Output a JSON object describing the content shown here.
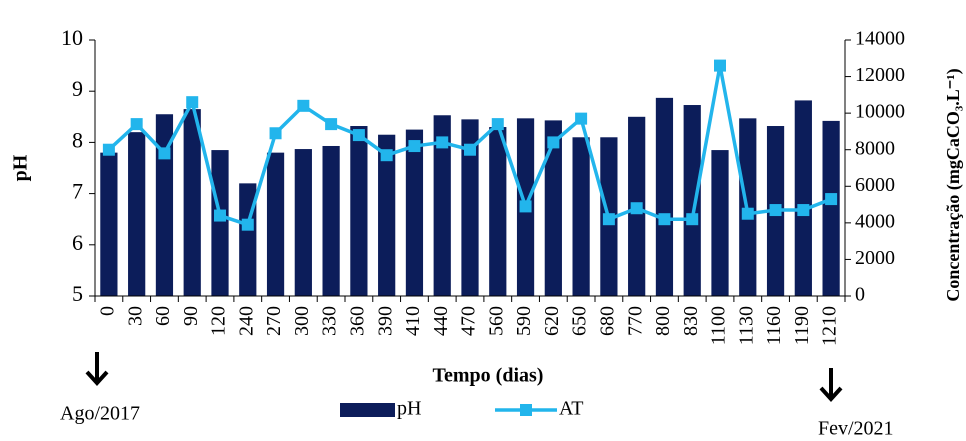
{
  "chart_data": {
    "type": "bar",
    "x_label": "Tempo (dias)",
    "y_label": "pH",
    "y2_label": "Concentração (mgCaCO₃.L⁻¹)",
    "annotations": [
      "Ago/2017",
      "Fev/2021"
    ],
    "categories": [
      "0",
      "30",
      "60",
      "90",
      "120",
      "240",
      "270",
      "300",
      "330",
      "360",
      "390",
      "410",
      "440",
      "470",
      "560",
      "590",
      "620",
      "650",
      "680",
      "770",
      "800",
      "830",
      "1100",
      "1130",
      "1160",
      "1190",
      "1210"
    ],
    "series": [
      {
        "name": "pH",
        "type": "bar",
        "color": "#0c1d5a",
        "values": [
          7.8,
          8.2,
          8.55,
          8.65,
          7.85,
          7.2,
          7.8,
          7.87,
          7.93,
          8.32,
          8.15,
          8.25,
          8.53,
          8.45,
          8.3,
          8.47,
          8.43,
          8.1,
          8.1,
          8.5,
          8.87,
          8.73,
          7.85,
          8.47,
          8.32,
          8.82,
          8.42
        ]
      },
      {
        "name": "AT",
        "type": "line",
        "axis": "y2",
        "color": "#22b5ec",
        "values": [
          8000,
          9400,
          7800,
          10600,
          4400,
          3900,
          8900,
          10400,
          9400,
          8800,
          7700,
          8200,
          8400,
          8000,
          9400,
          4900,
          8400,
          9700,
          4200,
          4800,
          4200,
          4200,
          12600,
          4500,
          4700,
          4700,
          5300
        ]
      }
    ],
    "ylim": [
      5,
      10
    ],
    "yticks": [
      5,
      6,
      7,
      8,
      9,
      10
    ],
    "y2lim": [
      0,
      14000
    ],
    "y2ticks": [
      0,
      2000,
      4000,
      6000,
      8000,
      10000,
      12000,
      14000
    ]
  }
}
